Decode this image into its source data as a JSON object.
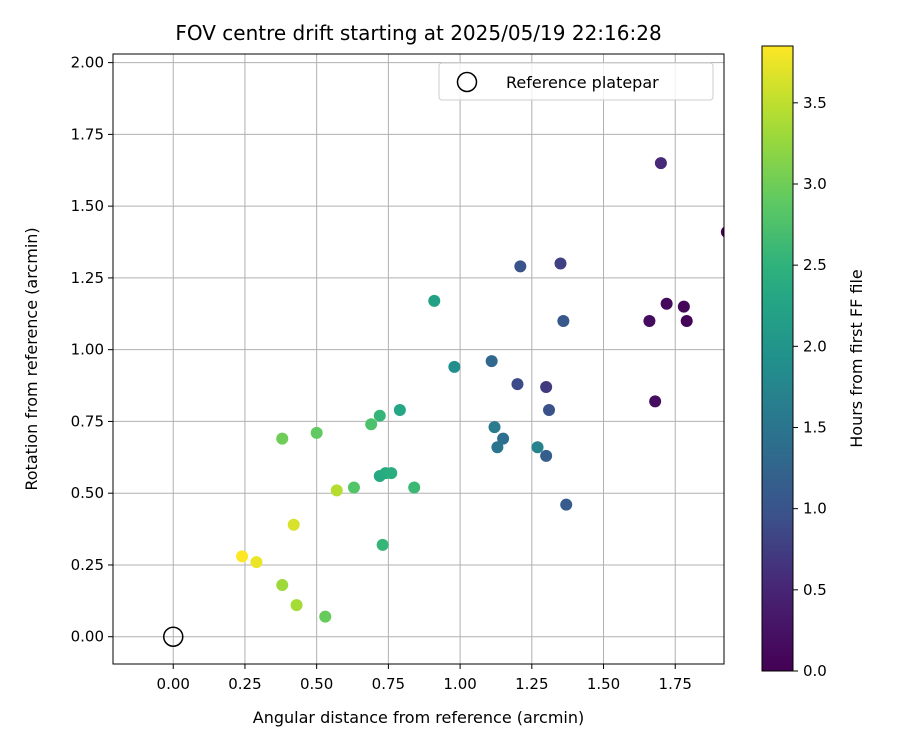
{
  "chart_data": {
    "type": "scatter",
    "title": "FOV centre drift starting at 2025/05/19 22:16:28",
    "xlabel": "Angular distance from reference (arcmin)",
    "ylabel": "Rotation from reference (arcmin)",
    "xlim": [
      -0.21,
      1.92
    ],
    "ylim": [
      -0.095,
      2.03
    ],
    "xticks": [
      "0.00",
      "0.25",
      "0.50",
      "0.75",
      "1.00",
      "1.25",
      "1.50",
      "1.75"
    ],
    "yticks": [
      "0.00",
      "0.25",
      "0.50",
      "0.75",
      "1.00",
      "1.25",
      "1.50",
      "1.75",
      "2.00"
    ],
    "grid": true,
    "legend": {
      "label": "Reference platepar",
      "position": "top-right"
    },
    "reference_point": {
      "x": 0.0,
      "y": 0.0
    },
    "colorbar": {
      "label": "Hours from first FF file",
      "colormap": "viridis",
      "range": [
        0.0,
        3.85
      ],
      "ticks": [
        "0.0",
        "0.5",
        "1.0",
        "1.5",
        "2.0",
        "2.5",
        "3.0",
        "3.5"
      ]
    },
    "points": [
      {
        "x": 1.93,
        "y": 1.41,
        "hours": 0.02
      },
      {
        "x": 1.79,
        "y": 1.1,
        "hours": 0.05
      },
      {
        "x": 1.78,
        "y": 1.15,
        "hours": 0.08
      },
      {
        "x": 1.72,
        "y": 1.16,
        "hours": 0.12
      },
      {
        "x": 1.66,
        "y": 1.1,
        "hours": 0.15
      },
      {
        "x": 1.68,
        "y": 0.82,
        "hours": 0.18
      },
      {
        "x": 1.7,
        "y": 1.65,
        "hours": 0.55
      },
      {
        "x": 1.3,
        "y": 0.87,
        "hours": 0.72
      },
      {
        "x": 1.35,
        "y": 1.3,
        "hours": 0.78
      },
      {
        "x": 1.2,
        "y": 0.88,
        "hours": 0.9
      },
      {
        "x": 1.31,
        "y": 0.79,
        "hours": 0.95
      },
      {
        "x": 1.21,
        "y": 1.29,
        "hours": 1.0
      },
      {
        "x": 1.36,
        "y": 1.1,
        "hours": 1.05
      },
      {
        "x": 1.37,
        "y": 0.46,
        "hours": 1.1
      },
      {
        "x": 1.3,
        "y": 0.63,
        "hours": 1.15
      },
      {
        "x": 1.11,
        "y": 0.96,
        "hours": 1.3
      },
      {
        "x": 1.15,
        "y": 0.69,
        "hours": 1.4
      },
      {
        "x": 1.13,
        "y": 0.66,
        "hours": 1.5
      },
      {
        "x": 1.12,
        "y": 0.73,
        "hours": 1.6
      },
      {
        "x": 1.27,
        "y": 0.66,
        "hours": 1.7
      },
      {
        "x": 0.98,
        "y": 0.94,
        "hours": 1.9
      },
      {
        "x": 0.91,
        "y": 1.17,
        "hours": 2.2
      },
      {
        "x": 0.79,
        "y": 0.79,
        "hours": 2.3
      },
      {
        "x": 0.72,
        "y": 0.56,
        "hours": 2.35
      },
      {
        "x": 0.74,
        "y": 0.57,
        "hours": 2.4
      },
      {
        "x": 0.76,
        "y": 0.57,
        "hours": 2.45
      },
      {
        "x": 0.72,
        "y": 0.77,
        "hours": 2.55
      },
      {
        "x": 0.73,
        "y": 0.32,
        "hours": 2.55
      },
      {
        "x": 0.84,
        "y": 0.52,
        "hours": 2.6
      },
      {
        "x": 0.69,
        "y": 0.74,
        "hours": 2.75
      },
      {
        "x": 0.63,
        "y": 0.52,
        "hours": 2.8
      },
      {
        "x": 0.5,
        "y": 0.71,
        "hours": 2.9
      },
      {
        "x": 0.53,
        "y": 0.07,
        "hours": 2.95
      },
      {
        "x": 0.38,
        "y": 0.69,
        "hours": 3.0
      },
      {
        "x": 0.38,
        "y": 0.18,
        "hours": 3.3
      },
      {
        "x": 0.43,
        "y": 0.11,
        "hours": 3.35
      },
      {
        "x": 0.57,
        "y": 0.51,
        "hours": 3.45
      },
      {
        "x": 0.42,
        "y": 0.39,
        "hours": 3.65
      },
      {
        "x": 0.29,
        "y": 0.26,
        "hours": 3.75
      },
      {
        "x": 0.24,
        "y": 0.28,
        "hours": 3.85
      }
    ]
  }
}
